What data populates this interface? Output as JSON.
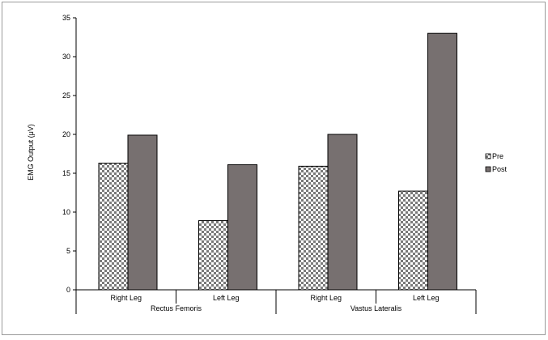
{
  "chart_data": {
    "type": "bar",
    "title": "",
    "xlabel": "",
    "ylabel": "EMG Output (μV)",
    "ylim": [
      0,
      35
    ],
    "yticks": [
      0,
      5,
      10,
      15,
      20,
      25,
      30,
      35
    ],
    "categories": [
      "Right Leg",
      "Left Leg",
      "Right Leg",
      "Left Leg"
    ],
    "groups": [
      {
        "label": "Rectus Femoris",
        "span": [
          0,
          1
        ]
      },
      {
        "label": "Vastus Lateralis",
        "span": [
          2,
          3
        ]
      }
    ],
    "series": [
      {
        "name": "Pre",
        "values": [
          16.3,
          8.9,
          15.9,
          12.7
        ],
        "pattern": "checker"
      },
      {
        "name": "Post",
        "values": [
          19.9,
          16.1,
          20.0,
          33.0
        ],
        "color": "#777070"
      }
    ],
    "grid": false,
    "legend_position": "right"
  }
}
